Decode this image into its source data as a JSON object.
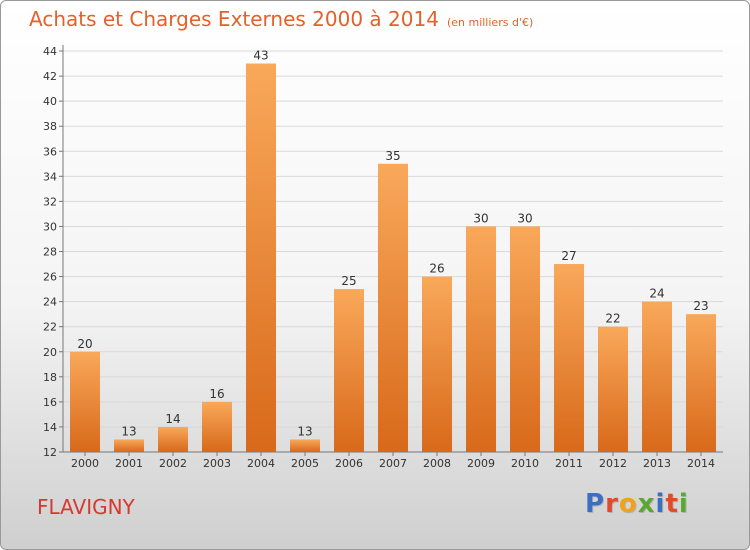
{
  "header": {
    "title": "Achats et Charges Externes 2000 à 2014",
    "subtitle": "(en milliers d'€)"
  },
  "footer": {
    "town": "FLAVIGNY",
    "logo": "Proxiti",
    "logo_colors": [
      "#3a6fc2",
      "#e34a2a",
      "#f0a21a",
      "#59a832",
      "#3a6fc2",
      "#e34a2a",
      "#59a832"
    ]
  },
  "colors": {
    "bar_light": "#f9a85a",
    "bar_dark": "#d8691a",
    "title": "#e3612a"
  },
  "chart_data": {
    "type": "bar",
    "title": "Achats et Charges Externes 2000 à 2014",
    "subtitle": "(en milliers d'€)",
    "categories": [
      "2000",
      "2001",
      "2002",
      "2003",
      "2004",
      "2005",
      "2006",
      "2007",
      "2008",
      "2009",
      "2010",
      "2011",
      "2012",
      "2013",
      "2014"
    ],
    "values": [
      20,
      13,
      14,
      16,
      43,
      13,
      25,
      35,
      26,
      30,
      30,
      27,
      22,
      24,
      23
    ],
    "ylim": [
      12,
      44
    ],
    "yticks": [
      12,
      14,
      16,
      18,
      20,
      22,
      24,
      26,
      28,
      30,
      32,
      34,
      36,
      38,
      40,
      42,
      44
    ],
    "grid": true
  }
}
